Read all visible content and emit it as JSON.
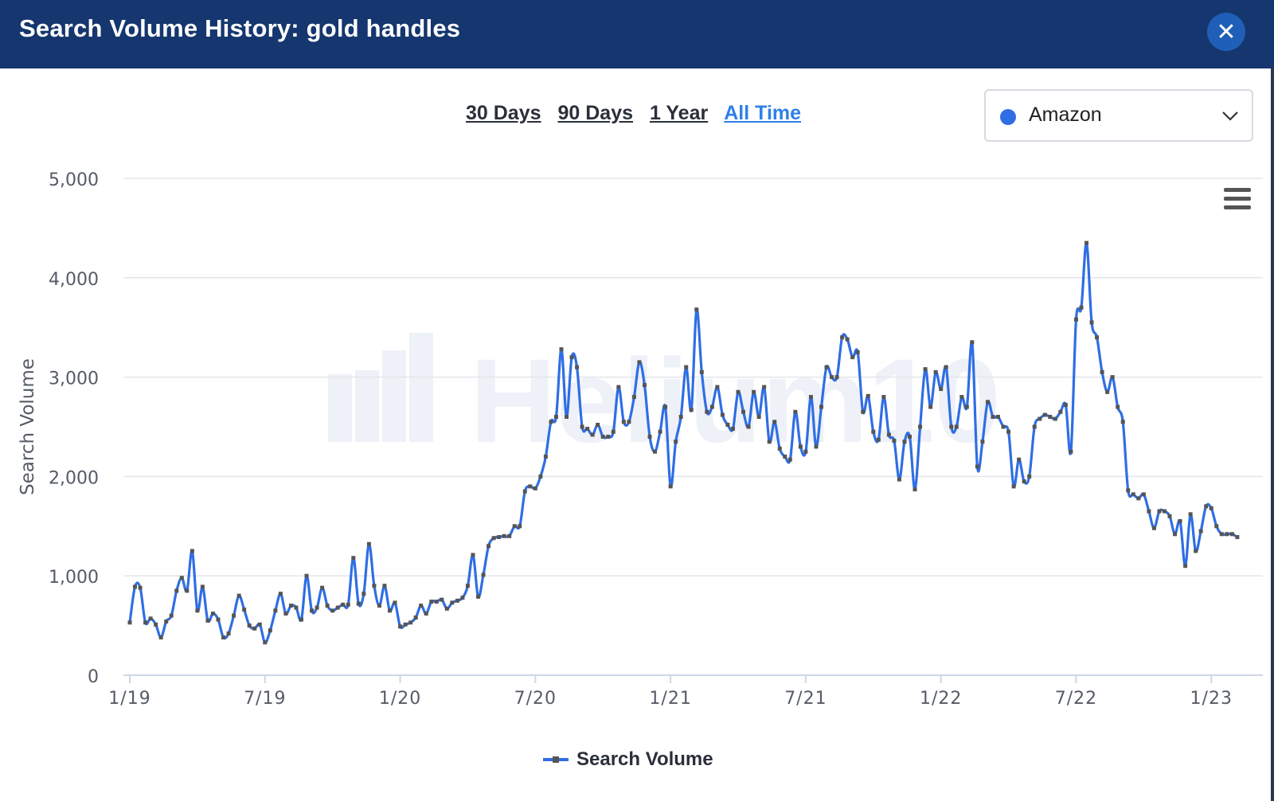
{
  "header": {
    "title": "Search Volume History: gold handles",
    "close_icon": "close-icon"
  },
  "range_tabs": [
    "30 Days",
    "90 Days",
    "1 Year",
    "All Time"
  ],
  "range_active": 3,
  "market": {
    "label": "Amazon",
    "color": "#2f6ee4"
  },
  "watermark": "Helium10",
  "colors": {
    "header_bg": "#15366e",
    "line": "#2f6ee4",
    "marker": "#555555",
    "active_tab": "#2f80e8"
  },
  "chart_data": {
    "type": "line",
    "ylabel": "Search Volume",
    "ylim": [
      0,
      5000
    ],
    "yticks": [
      0,
      1000,
      2000,
      3000,
      4000,
      5000
    ],
    "ytick_labels": [
      "0",
      "1,000",
      "2,000",
      "3,000",
      "4,000",
      "5,000"
    ],
    "xticks": [
      0,
      26,
      52,
      78,
      104,
      130,
      156,
      182,
      208
    ],
    "xtick_labels": [
      "1/19",
      "7/19",
      "1/20",
      "7/20",
      "1/21",
      "7/21",
      "1/22",
      "7/22",
      "1/23"
    ],
    "series": [
      {
        "name": "Search Volume",
        "values": [
          530,
          890,
          880,
          530,
          570,
          510,
          380,
          540,
          600,
          850,
          980,
          850,
          1250,
          650,
          890,
          550,
          620,
          560,
          380,
          420,
          600,
          800,
          660,
          500,
          470,
          510,
          330,
          450,
          650,
          820,
          620,
          700,
          680,
          560,
          1000,
          650,
          680,
          880,
          700,
          650,
          680,
          710,
          710,
          1180,
          720,
          820,
          1320,
          900,
          700,
          900,
          650,
          730,
          490,
          510,
          530,
          580,
          700,
          620,
          740,
          740,
          760,
          670,
          730,
          750,
          780,
          900,
          1210,
          790,
          1010,
          1300,
          1380,
          1390,
          1400,
          1400,
          1500,
          1500,
          1850,
          1900,
          1880,
          2000,
          2200,
          2550,
          2600,
          3280,
          2600,
          3200,
          3100,
          2500,
          2480,
          2420,
          2520,
          2400,
          2400,
          2450,
          2900,
          2550,
          2550,
          2800,
          3150,
          2920,
          2400,
          2250,
          2450,
          2700,
          1900,
          2350,
          2600,
          3100,
          2670,
          3680,
          3050,
          2650,
          2700,
          2900,
          2620,
          2520,
          2480,
          2850,
          2650,
          2500,
          2850,
          2600,
          2900,
          2350,
          2550,
          2280,
          2200,
          2170,
          2650,
          2300,
          2250,
          2800,
          2300,
          2700,
          3100,
          3000,
          3000,
          3400,
          3380,
          3200,
          3250,
          2650,
          2810,
          2450,
          2370,
          2800,
          2420,
          2360,
          1970,
          2350,
          2400,
          1870,
          2500,
          3080,
          2700,
          3050,
          2880,
          3100,
          2500,
          2500,
          2800,
          2700,
          3350,
          2100,
          2350,
          2750,
          2600,
          2600,
          2500,
          2450,
          1900,
          2170,
          1950,
          2000,
          2500,
          2580,
          2620,
          2600,
          2580,
          2650,
          2720,
          2250,
          3580,
          3700,
          4350,
          3550,
          3400,
          3050,
          2850,
          3000,
          2700,
          2550,
          1860,
          1820,
          1780,
          1820,
          1650,
          1480,
          1650,
          1650,
          1600,
          1420,
          1550,
          1100,
          1620,
          1250,
          1450,
          1700,
          1680,
          1500,
          1420,
          1420,
          1420,
          1390
        ]
      }
    ],
    "legend_position": "bottom-center",
    "grid": true
  }
}
